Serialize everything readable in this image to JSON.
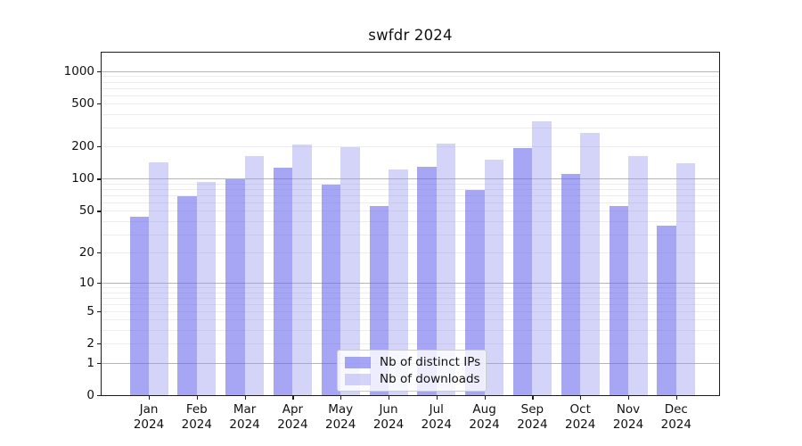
{
  "title": "swfdr 2024",
  "chart_data": {
    "type": "bar",
    "title": "swfdr 2024",
    "xlabel": "",
    "ylabel": "",
    "year": "2024",
    "categories": [
      "Jan",
      "Feb",
      "Mar",
      "Apr",
      "May",
      "Jun",
      "Jul",
      "Aug",
      "Sep",
      "Oct",
      "Nov",
      "Dec"
    ],
    "series": [
      {
        "name": "Nb of distinct IPs",
        "color": "rgba(102,102,238,0.58)",
        "values": [
          44,
          69,
          99,
          127,
          88,
          56,
          130,
          78,
          192,
          112,
          56,
          36
        ]
      },
      {
        "name": "Nb of downloads",
        "color": "rgba(153,153,238,0.42)",
        "values": [
          142,
          93,
          162,
          210,
          199,
          123,
          213,
          150,
          341,
          267,
          162,
          140
        ]
      }
    ],
    "scale": "log10(x+1)",
    "ylim": [
      0,
      1489
    ],
    "yticks": [
      1000,
      500,
      200,
      100,
      50,
      20,
      10,
      5,
      2,
      1,
      0
    ],
    "grid": {
      "on": true,
      "major_values": [
        1,
        10,
        100,
        1000
      ],
      "minor_values": [
        2,
        3,
        4,
        5,
        6,
        7,
        8,
        9,
        20,
        30,
        40,
        50,
        60,
        70,
        80,
        90,
        200,
        300,
        400,
        500,
        600,
        700,
        800,
        900
      ],
      "major_color": "#b5b5b5",
      "minor_color": "#ededed"
    },
    "legend_position": "lower center (inside axes)"
  }
}
